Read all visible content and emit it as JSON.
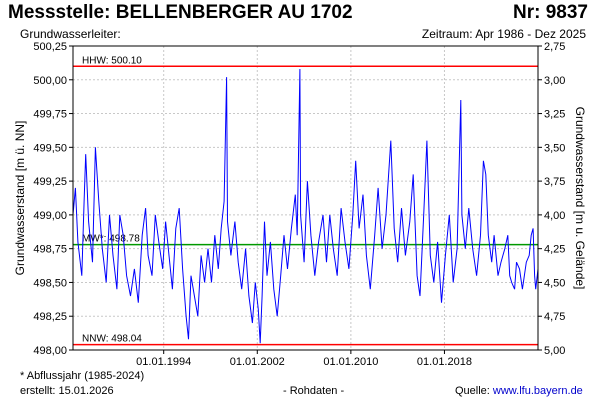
{
  "header": {
    "title": "Messstelle: BELLENBERGER AU 1702",
    "nr": "Nr: 9837",
    "aquifer_label": "Grundwasserleiter:",
    "period": "Zeitraum: Apr 1986 - Dez 2025"
  },
  "footer": {
    "note": "* Abflussjahr (1985-2024)",
    "created": "erstellt:  15.01.2026",
    "data_type": "- Rohdaten -",
    "source_label": "Quelle:",
    "source_link": "www.lfu.bayern.de"
  },
  "colors": {
    "series": "#0000ff",
    "limit_lines": "#ff0000",
    "mean_line": "#009900",
    "grid": "#c8c8c8"
  },
  "chart_data": {
    "type": "line",
    "title": "",
    "xlabel": "",
    "ylabel": "Grundwasserstand [m ü. NN]",
    "ylabel_right": "Grundwasserstand [m u. Gelände]",
    "xlim": [
      "1986-04-01",
      "2025-12-31"
    ],
    "ylim": [
      498.0,
      500.25
    ],
    "ylim_right": [
      5.0,
      2.75
    ],
    "x_ticks": [
      "01.01.1994",
      "01.01.2002",
      "01.01.2010",
      "01.01.2018"
    ],
    "y_ticks": [
      "498,00",
      "498,25",
      "498,50",
      "498,75",
      "499,00",
      "499,25",
      "499,50",
      "499,75",
      "500,00",
      "500,25"
    ],
    "y_ticks_right": [
      "2,75",
      "3,00",
      "3,25",
      "3,50",
      "3,75",
      "4,00",
      "4,25",
      "4,50",
      "4,75",
      "5,00"
    ],
    "grid": true,
    "reference_lines": [
      {
        "label": "HHW: 500.10",
        "value": 500.1,
        "color": "#ff0000"
      },
      {
        "label": "MW*: 498.78",
        "value": 498.78,
        "color": "#009900"
      },
      {
        "label": "NNW: 498.04",
        "value": 498.04,
        "color": "#ff0000"
      }
    ],
    "series": [
      {
        "values": [
          [
            "1986-04-01",
            499.0
          ],
          [
            "1986-06-15",
            499.2
          ],
          [
            "1986-09-01",
            498.8
          ],
          [
            "1987-01-01",
            498.55
          ],
          [
            "1987-03-15",
            499.1
          ],
          [
            "1987-05-01",
            499.45
          ],
          [
            "1987-08-01",
            498.95
          ],
          [
            "1987-12-01",
            498.65
          ],
          [
            "1988-03-01",
            499.5
          ],
          [
            "1988-06-15",
            499.1
          ],
          [
            "1988-10-01",
            498.75
          ],
          [
            "1989-02-01",
            498.5
          ],
          [
            "1989-05-15",
            499.0
          ],
          [
            "1989-09-01",
            498.7
          ],
          [
            "1990-01-01",
            498.45
          ],
          [
            "1990-04-01",
            499.0
          ],
          [
            "1990-07-15",
            498.85
          ],
          [
            "1990-11-01",
            498.55
          ],
          [
            "1991-03-01",
            498.4
          ],
          [
            "1991-07-01",
            498.6
          ],
          [
            "1991-11-01",
            498.35
          ],
          [
            "1992-03-01",
            498.85
          ],
          [
            "1992-06-15",
            499.05
          ],
          [
            "1992-09-01",
            498.7
          ],
          [
            "1993-01-01",
            498.55
          ],
          [
            "1993-04-15",
            499.0
          ],
          [
            "1993-08-01",
            498.8
          ],
          [
            "1993-12-01",
            498.6
          ],
          [
            "1994-03-01",
            498.95
          ],
          [
            "1994-06-15",
            498.7
          ],
          [
            "1994-10-01",
            498.45
          ],
          [
            "1995-01-15",
            498.9
          ],
          [
            "1995-05-01",
            499.05
          ],
          [
            "1995-08-15",
            498.6
          ],
          [
            "1995-12-01",
            498.25
          ],
          [
            "1996-02-15",
            498.08
          ],
          [
            "1996-05-01",
            498.55
          ],
          [
            "1996-08-15",
            498.4
          ],
          [
            "1996-12-01",
            498.25
          ],
          [
            "1997-03-15",
            498.7
          ],
          [
            "1997-07-01",
            498.5
          ],
          [
            "1997-10-15",
            498.75
          ],
          [
            "1998-02-01",
            498.5
          ],
          [
            "1998-05-15",
            498.85
          ],
          [
            "1998-09-01",
            498.6
          ],
          [
            "1998-12-01",
            498.9
          ],
          [
            "1999-03-01",
            499.1
          ],
          [
            "1999-05-20",
            500.02
          ],
          [
            "1999-06-15",
            498.95
          ],
          [
            "1999-10-01",
            498.7
          ],
          [
            "2000-02-01",
            498.95
          ],
          [
            "2000-05-15",
            498.65
          ],
          [
            "2000-09-01",
            498.45
          ],
          [
            "2001-01-01",
            498.75
          ],
          [
            "2001-04-15",
            498.4
          ],
          [
            "2001-08-01",
            498.2
          ],
          [
            "2001-11-01",
            498.5
          ],
          [
            "2002-02-01",
            498.3
          ],
          [
            "2002-04-01",
            498.05
          ],
          [
            "2002-06-01",
            498.4
          ],
          [
            "2002-08-15",
            498.95
          ],
          [
            "2002-11-01",
            498.55
          ],
          [
            "2003-02-15",
            498.8
          ],
          [
            "2003-06-01",
            498.45
          ],
          [
            "2003-09-15",
            498.25
          ],
          [
            "2004-01-01",
            498.55
          ],
          [
            "2004-04-15",
            498.85
          ],
          [
            "2004-08-01",
            498.6
          ],
          [
            "2004-12-01",
            498.9
          ],
          [
            "2005-04-01",
            499.15
          ],
          [
            "2005-06-01",
            498.85
          ],
          [
            "2005-08-23",
            500.08
          ],
          [
            "2005-09-15",
            499.0
          ],
          [
            "2006-01-01",
            498.65
          ],
          [
            "2006-04-15",
            499.25
          ],
          [
            "2006-08-01",
            498.85
          ],
          [
            "2006-12-01",
            498.55
          ],
          [
            "2007-04-01",
            498.8
          ],
          [
            "2007-08-15",
            499.0
          ],
          [
            "2007-12-01",
            498.65
          ],
          [
            "2008-03-15",
            499.0
          ],
          [
            "2008-07-01",
            498.75
          ],
          [
            "2008-11-01",
            498.55
          ],
          [
            "2009-03-01",
            499.05
          ],
          [
            "2009-07-01",
            498.8
          ],
          [
            "2009-11-01",
            498.6
          ],
          [
            "2010-03-01",
            499.0
          ],
          [
            "2010-06-01",
            499.4
          ],
          [
            "2010-09-15",
            498.9
          ],
          [
            "2011-01-15",
            499.15
          ],
          [
            "2011-05-01",
            498.7
          ],
          [
            "2011-09-01",
            498.45
          ],
          [
            "2012-01-15",
            498.85
          ],
          [
            "2012-05-01",
            499.2
          ],
          [
            "2012-09-01",
            498.75
          ],
          [
            "2013-01-01",
            499.0
          ],
          [
            "2013-06-01",
            499.55
          ],
          [
            "2013-09-15",
            498.9
          ],
          [
            "2014-01-01",
            498.65
          ],
          [
            "2014-05-01",
            499.05
          ],
          [
            "2014-09-01",
            498.7
          ],
          [
            "2015-01-15",
            498.95
          ],
          [
            "2015-05-01",
            499.3
          ],
          [
            "2015-09-01",
            498.55
          ],
          [
            "2015-12-01",
            498.4
          ],
          [
            "2016-04-01",
            499.05
          ],
          [
            "2016-07-01",
            499.55
          ],
          [
            "2016-10-15",
            498.7
          ],
          [
            "2017-02-01",
            498.5
          ],
          [
            "2017-06-01",
            498.8
          ],
          [
            "2017-10-01",
            498.35
          ],
          [
            "2018-02-01",
            498.7
          ],
          [
            "2018-06-01",
            499.0
          ],
          [
            "2018-10-01",
            498.5
          ],
          [
            "2019-02-01",
            498.75
          ],
          [
            "2019-05-25",
            499.85
          ],
          [
            "2019-07-01",
            499.0
          ],
          [
            "2019-10-15",
            498.75
          ],
          [
            "2020-02-01",
            499.05
          ],
          [
            "2020-06-01",
            498.75
          ],
          [
            "2020-10-01",
            498.55
          ],
          [
            "2021-02-01",
            498.85
          ],
          [
            "2021-05-01",
            499.4
          ],
          [
            "2021-07-15",
            499.3
          ],
          [
            "2021-10-01",
            498.85
          ],
          [
            "2022-01-15",
            498.65
          ],
          [
            "2022-04-01",
            498.85
          ],
          [
            "2022-08-01",
            498.55
          ],
          [
            "2022-11-01",
            498.65
          ],
          [
            "2023-03-01",
            498.75
          ],
          [
            "2023-06-01",
            498.85
          ],
          [
            "2023-08-01",
            498.55
          ],
          [
            "2023-10-01",
            498.5
          ],
          [
            "2024-01-01",
            498.45
          ],
          [
            "2024-03-01",
            498.65
          ],
          [
            "2024-06-01",
            498.6
          ],
          [
            "2024-09-01",
            498.45
          ],
          [
            "2025-01-01",
            498.65
          ],
          [
            "2025-04-01",
            498.7
          ],
          [
            "2025-06-01",
            498.85
          ],
          [
            "2025-08-01",
            498.9
          ],
          [
            "2025-09-15",
            498.55
          ],
          [
            "2025-10-20",
            498.45
          ],
          [
            "2025-12-31",
            498.6
          ]
        ]
      }
    ]
  }
}
